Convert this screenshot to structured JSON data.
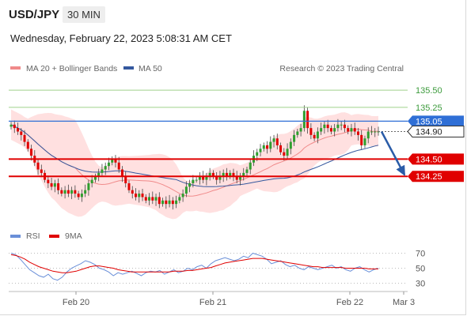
{
  "header": {
    "pair": "USD/JPY",
    "timeframe": "30 MIN"
  },
  "datetime": "Wednesday, February 22, 2023 5:08:31 AM CET",
  "legend": {
    "bollinger": "MA 20 + Bollinger Bands",
    "ma50": "MA 50",
    "credit": "Research © 2023 Trading Central",
    "rsi": "RSI",
    "rsi_ma": "9MA"
  },
  "colors": {
    "bullish": "#2e9e2e",
    "bearish": "#e00000",
    "band_fill": "#ffd6d6",
    "ma20": "#f08a8a",
    "ma50": "#34589e",
    "blue_level": "#2f6fd6",
    "target_arrow": "#2a5ca8"
  },
  "chart_data": [
    {
      "type": "candlestick",
      "title": "USD/JPY",
      "y_axis": "right",
      "ylim": [
        133.6,
        135.65
      ],
      "x_ticks": [
        "Feb 20",
        "Feb 21",
        "Feb 22",
        "Mar 3"
      ],
      "levels": [
        {
          "value": 135.5,
          "label": "135.50",
          "style": "green"
        },
        {
          "value": 135.25,
          "label": "135.25",
          "style": "green"
        },
        {
          "value": 135.05,
          "label": "135.05",
          "style": "blue"
        },
        {
          "value": 134.9,
          "label": "134.90",
          "style": "current"
        },
        {
          "value": 134.5,
          "label": "134.50",
          "style": "red"
        },
        {
          "value": 134.25,
          "label": "134.25",
          "style": "red"
        }
      ],
      "series": [
        {
          "name": "close",
          "values": [
            135.0,
            134.95,
            134.9,
            134.85,
            134.75,
            134.65,
            134.55,
            134.45,
            134.35,
            134.3,
            134.2,
            134.15,
            134.1,
            134.15,
            134.05,
            134.0,
            134.05,
            134.0,
            134.05,
            134.0,
            133.95,
            134.0,
            134.05,
            134.15,
            134.2,
            134.25,
            134.3,
            134.35,
            134.4,
            134.45,
            134.5,
            134.45,
            134.35,
            134.25,
            134.15,
            134.05,
            134.0,
            133.95,
            134.0,
            133.95,
            133.9,
            133.95,
            133.9,
            133.95,
            133.85,
            133.9,
            133.85,
            133.9,
            133.85,
            133.9,
            133.95,
            134.0,
            134.1,
            134.15,
            134.2,
            134.2,
            134.25,
            134.2,
            134.25,
            134.3,
            134.25,
            134.2,
            134.25,
            134.3,
            134.25,
            134.3,
            134.25,
            134.2,
            134.25,
            134.3,
            134.35,
            134.45,
            134.55,
            134.6,
            134.65,
            134.7,
            134.65,
            134.75,
            134.8,
            134.7,
            134.6,
            134.55,
            134.65,
            134.75,
            134.85,
            134.9,
            134.95,
            135.2,
            134.95,
            134.85,
            134.8,
            134.9,
            134.95,
            135.0,
            134.95,
            134.9,
            134.95,
            135.0,
            135.0,
            134.95,
            134.9,
            134.95,
            134.9,
            134.85,
            134.7,
            134.8,
            134.9,
            134.9,
            134.9,
            134.9
          ]
        }
      ],
      "overlays": [
        "MA 20 + Bollinger Bands",
        "MA 50"
      ],
      "projection": {
        "from": 134.9,
        "to": 134.25
      }
    },
    {
      "type": "line",
      "title": "RSI",
      "ylim": [
        20,
        80
      ],
      "y_ticks": [
        70,
        50,
        30
      ],
      "series": [
        {
          "name": "RSI",
          "values": [
            70,
            68,
            62,
            55,
            48,
            44,
            40,
            38,
            42,
            36,
            34,
            38,
            45,
            50,
            53,
            56,
            60,
            58,
            55,
            50,
            48,
            45,
            40,
            44,
            42,
            44,
            46,
            43,
            40,
            44,
            46,
            45,
            47,
            42,
            45,
            48,
            44,
            46,
            50,
            48,
            52,
            54,
            50,
            56,
            60,
            62,
            64,
            62,
            60,
            62,
            66,
            64,
            70,
            68,
            66,
            62,
            56,
            58,
            60,
            55,
            52,
            54,
            50,
            48,
            52,
            50,
            48,
            50,
            52,
            54,
            50,
            52,
            48,
            46,
            50,
            52,
            48,
            45,
            48,
            50
          ]
        },
        {
          "name": "9MA",
          "values": [
            68,
            67,
            65,
            62,
            58,
            55,
            52,
            50,
            48,
            46,
            45,
            44,
            44,
            45,
            46,
            48,
            50,
            52,
            53,
            53,
            52,
            51,
            50,
            48,
            47,
            46,
            45,
            45,
            45,
            45,
            45,
            45,
            45,
            45,
            45,
            46,
            46,
            46,
            47,
            47,
            48,
            49,
            50,
            51,
            53,
            55,
            57,
            58,
            59,
            60,
            61,
            62,
            63,
            63,
            63,
            62,
            61,
            60,
            59,
            58,
            57,
            56,
            55,
            54,
            53,
            52,
            52,
            51,
            51,
            51,
            51,
            51,
            50,
            50,
            50,
            50,
            50,
            49,
            49,
            49
          ]
        }
      ]
    }
  ]
}
